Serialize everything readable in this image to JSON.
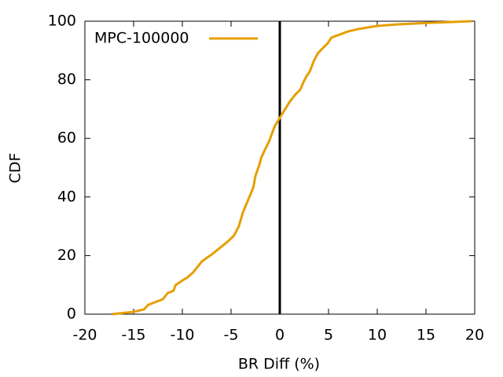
{
  "chart_data": {
    "type": "line",
    "xlabel": "BR Diff (%)",
    "ylabel": "CDF",
    "xlim": [
      -20,
      20
    ],
    "xticks": [
      -20,
      -15,
      -10,
      -5,
      0,
      5,
      10,
      15,
      20
    ],
    "ylim": [
      0,
      100
    ],
    "yticks": [
      0,
      20,
      40,
      60,
      80,
      100
    ],
    "vline": 0,
    "legend": "top-left",
    "series": [
      {
        "name": "MPC-100000",
        "color": "#e69f00",
        "x": [
          -17.2,
          -15,
          -13.95,
          -13.5,
          -12,
          -11.5,
          -10.9,
          -10.7,
          -10,
          -9.5,
          -8.9,
          -8,
          -6.9,
          -6,
          -5.2,
          -4.7,
          -4.2,
          -3.8,
          -3.5,
          -3.1,
          -2.7,
          -2.5,
          -2.1,
          -1.9,
          -1.5,
          -1.1,
          -0.8,
          -0.5,
          0,
          0.5,
          1,
          1.6,
          2.1,
          2.4,
          2.7,
          3.1,
          3.5,
          3.9,
          4.4,
          4.9,
          5.3,
          7,
          8,
          10,
          12,
          15,
          19.7
        ],
        "values": [
          0,
          0.8,
          1.6,
          3.2,
          5.1,
          7.2,
          8,
          9.9,
          11.5,
          12.5,
          14.2,
          18,
          20.6,
          23,
          25.2,
          26.8,
          30,
          34.6,
          37,
          40.2,
          43.4,
          47.2,
          51,
          53.4,
          56.3,
          59,
          61.7,
          64.3,
          67,
          69.7,
          72.4,
          75,
          76.6,
          79,
          81,
          83,
          86.5,
          89,
          90.8,
          92.4,
          94.4,
          96.5,
          97.3,
          98.4,
          98.9,
          99.4,
          100
        ]
      }
    ]
  }
}
